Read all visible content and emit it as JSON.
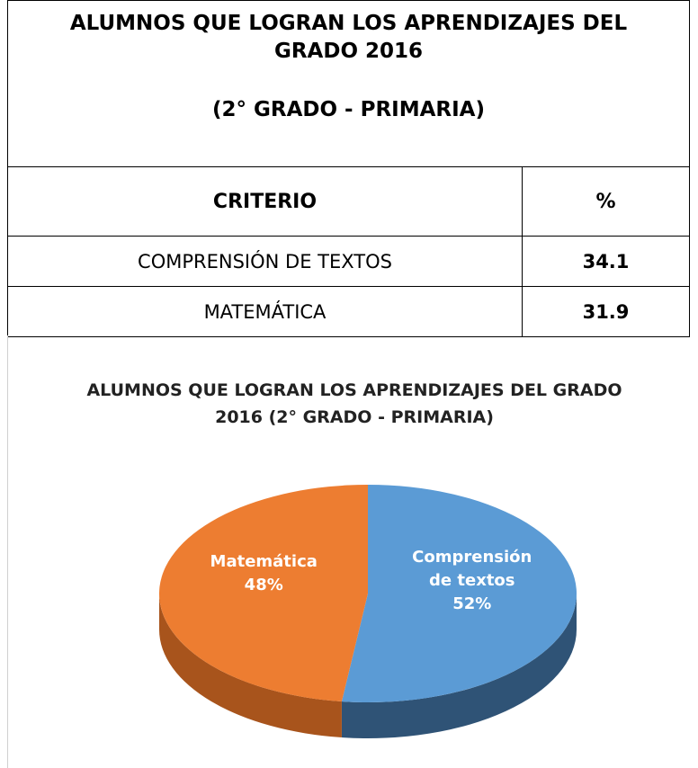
{
  "table": {
    "title": [
      "ALUMNOS QUE LOGRAN LOS APRENDIZAJES DEL GRADO 2016",
      "(2° GRADO - PRIMARIA)"
    ],
    "header": [
      "CRITERIO",
      "%"
    ],
    "rows": [
      [
        "COMPRENSIÓN DE TEXTOS",
        34.1
      ],
      [
        "MATEMÁTICA",
        31.9
      ]
    ]
  },
  "chart_data": {
    "type": "pie",
    "title": "ALUMNOS QUE LOGRAN LOS APRENDIZAJES DEL GRADO 2016 (2° GRADO - PRIMARIA)",
    "categories": [
      "Comprensión de textos",
      "Matemática"
    ],
    "values": [
      52,
      48
    ],
    "value_labels": [
      "52%",
      "48%"
    ],
    "colors": [
      "#5b9bd5",
      "#ed7d31"
    ]
  }
}
